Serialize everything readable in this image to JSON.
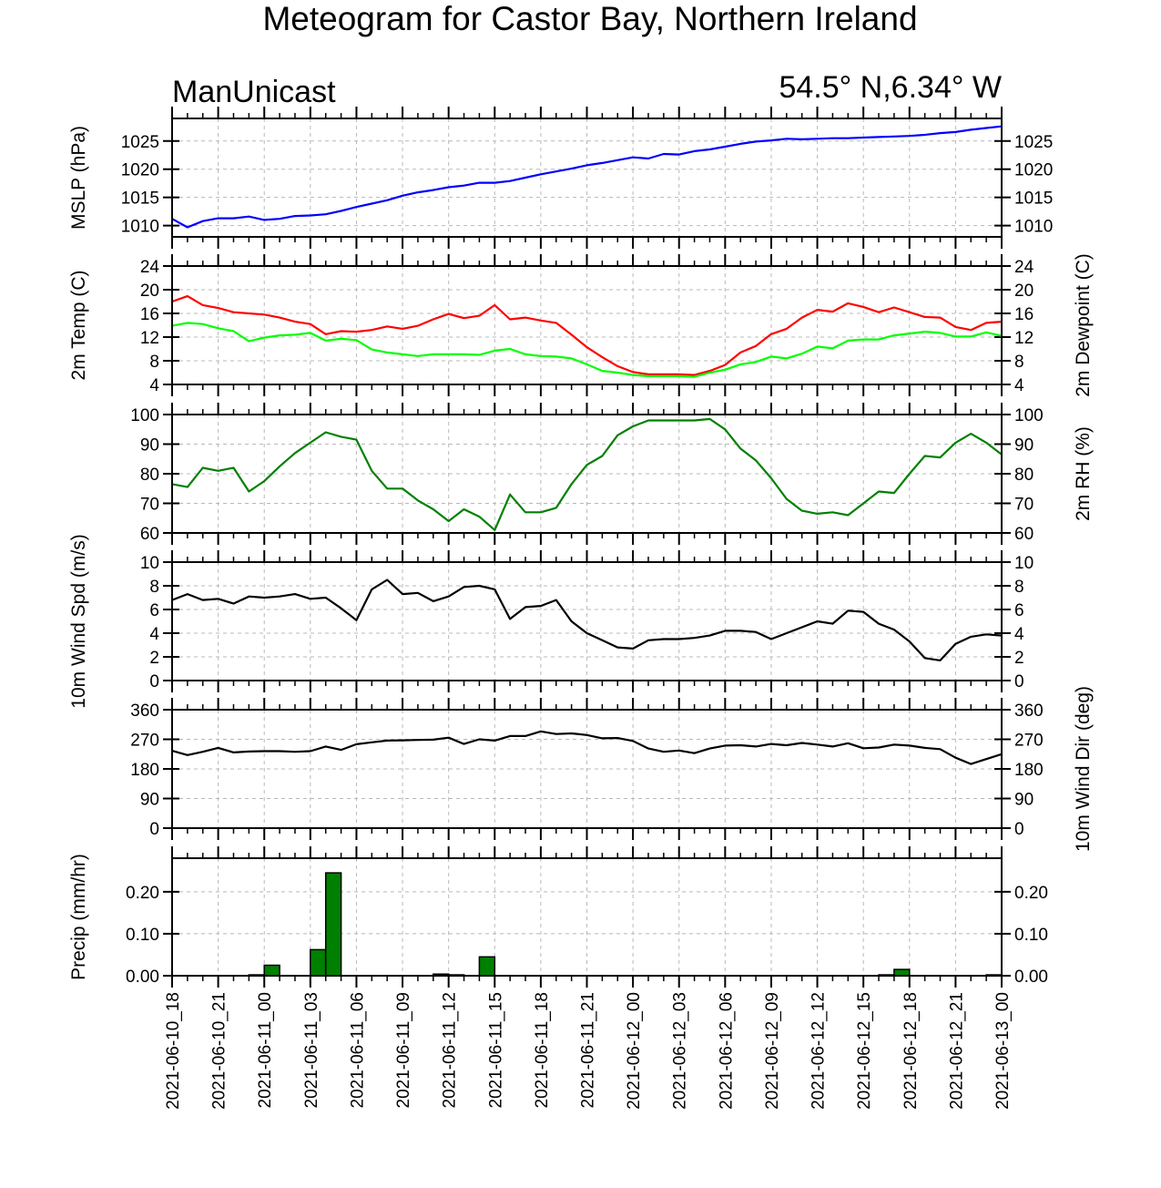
{
  "title": "Meteogram for Castor Bay, Northern Ireland",
  "model": "ManUnicast",
  "location": "54.5° N,6.34° W",
  "time_labels": [
    "2021-06-10_18",
    "2021-06-10_21",
    "2021-06-11_00",
    "2021-06-11_03",
    "2021-06-11_06",
    "2021-06-11_09",
    "2021-06-11_12",
    "2021-06-11_15",
    "2021-06-11_18",
    "2021-06-11_21",
    "2021-06-12_00",
    "2021-06-12_03",
    "2021-06-12_06",
    "2021-06-12_09",
    "2021-06-12_12",
    "2021-06-12_15",
    "2021-06-12_18",
    "2021-06-12_21",
    "2021-06-13_00"
  ],
  "chart_data": [
    {
      "type": "line",
      "ylabel": "MSLP (hPa)",
      "ylim": [
        1008,
        1029
      ],
      "yticks": [
        1010,
        1015,
        1020,
        1025
      ],
      "right_ticks": true,
      "grid": true,
      "x_hours": [
        0,
        1,
        2,
        3,
        4,
        5,
        6,
        7,
        8,
        9,
        10,
        11,
        12,
        13,
        14,
        15,
        16,
        17,
        18,
        19,
        20,
        21,
        22,
        23,
        24,
        25,
        26,
        27,
        28,
        29,
        30,
        31,
        32,
        33,
        34,
        35,
        36,
        37,
        38,
        39,
        40,
        41,
        42,
        43,
        44,
        45,
        46,
        47,
        48,
        49,
        50,
        51,
        52,
        53,
        54
      ],
      "series": [
        {
          "color": "#0000ff",
          "values": [
            1011.2,
            1009.7,
            1010.8,
            1011.3,
            1011.3,
            1011.6,
            1011.0,
            1011.2,
            1011.7,
            1011.8,
            1012.0,
            1012.6,
            1013.3,
            1013.9,
            1014.5,
            1015.3,
            1015.9,
            1016.3,
            1016.8,
            1017.1,
            1017.6,
            1017.6,
            1017.9,
            1018.5,
            1019.1,
            1019.6,
            1020.1,
            1020.7,
            1021.1,
            1021.6,
            1022.1,
            1021.9,
            1022.7,
            1022.6,
            1023.2,
            1023.5,
            1024.0,
            1024.5,
            1024.9,
            1025.1,
            1025.4,
            1025.3,
            1025.4,
            1025.5,
            1025.5,
            1025.6,
            1025.7,
            1025.8,
            1025.9,
            1026.1,
            1026.4,
            1026.6,
            1027.0,
            1027.3,
            1027.6
          ]
        }
      ]
    },
    {
      "type": "line",
      "ylabel": "2m Temp (C)",
      "ylabel_right": "2m Dewpoint (C)",
      "ylim": [
        4,
        24
      ],
      "yticks": [
        4,
        8,
        12,
        16,
        20,
        24
      ],
      "right_ticks": true,
      "grid": true,
      "x_hours": [
        0,
        1,
        2,
        3,
        4,
        5,
        6,
        7,
        8,
        9,
        10,
        11,
        12,
        13,
        14,
        15,
        16,
        17,
        18,
        19,
        20,
        21,
        22,
        23,
        24,
        25,
        26,
        27,
        28,
        29,
        30,
        31,
        32,
        33,
        34,
        35,
        36,
        37,
        38,
        39,
        40,
        41,
        42,
        43,
        44,
        45,
        46,
        47,
        48,
        49,
        50,
        51,
        52,
        53,
        54
      ],
      "series": [
        {
          "color": "#ff0000",
          "values": [
            18.0,
            18.9,
            17.4,
            16.9,
            16.2,
            16.0,
            15.8,
            15.3,
            14.6,
            14.2,
            12.5,
            13.0,
            12.9,
            13.2,
            13.8,
            13.4,
            13.9,
            15.0,
            15.9,
            15.2,
            15.6,
            17.4,
            15.0,
            15.3,
            14.8,
            14.4,
            12.4,
            10.3,
            8.6,
            7.1,
            6.1,
            5.7,
            5.7,
            5.7,
            5.6,
            6.3,
            7.3,
            9.4,
            10.5,
            12.5,
            13.4,
            15.3,
            16.6,
            16.3,
            17.7,
            17.1,
            16.2,
            17.0,
            16.2,
            15.4,
            15.3,
            13.7,
            13.2,
            14.4,
            14.6
          ]
        },
        {
          "color": "#00ff00",
          "values": [
            13.9,
            14.4,
            14.2,
            13.5,
            13.0,
            11.3,
            11.9,
            12.3,
            12.4,
            12.7,
            11.4,
            11.7,
            11.5,
            9.9,
            9.4,
            9.1,
            8.8,
            9.1,
            9.1,
            9.1,
            9.0,
            9.7,
            10.0,
            9.1,
            8.8,
            8.7,
            8.4,
            7.4,
            6.3,
            6.0,
            5.6,
            5.4,
            5.4,
            5.4,
            5.3,
            6.0,
            6.5,
            7.4,
            7.8,
            8.7,
            8.4,
            9.2,
            10.4,
            10.1,
            11.4,
            11.6,
            11.6,
            12.3,
            12.6,
            12.9,
            12.7,
            12.1,
            12.1,
            12.8,
            12.2
          ]
        }
      ]
    },
    {
      "type": "line",
      "ylabel_right": "2m RH (%)",
      "ylim": [
        60,
        100
      ],
      "yticks": [
        60,
        70,
        80,
        90,
        100
      ],
      "right_ticks": true,
      "grid": true,
      "x_hours": [
        0,
        1,
        2,
        3,
        4,
        5,
        6,
        7,
        8,
        9,
        10,
        11,
        12,
        13,
        14,
        15,
        16,
        17,
        18,
        19,
        20,
        21,
        22,
        23,
        24,
        25,
        26,
        27,
        28,
        29,
        30,
        31,
        32,
        33,
        34,
        35,
        36,
        37,
        38,
        39,
        40,
        41,
        42,
        43,
        44,
        45,
        46,
        47,
        48,
        49,
        50,
        51,
        52,
        53,
        54
      ],
      "series": [
        {
          "color": "#008000",
          "values": [
            76.5,
            75.5,
            82.0,
            81.0,
            82.0,
            74.0,
            77.5,
            82.5,
            87.0,
            90.5,
            94.0,
            92.5,
            91.5,
            81.0,
            75.0,
            75.0,
            71.0,
            68.0,
            64.0,
            68.0,
            65.5,
            61.0,
            73.0,
            67.0,
            67.0,
            68.5,
            76.5,
            83.0,
            86.0,
            93.0,
            96.0,
            98.0,
            98.0,
            98.0,
            98.0,
            98.5,
            95.0,
            88.5,
            84.5,
            78.5,
            71.5,
            67.5,
            66.5,
            67.0,
            66.0,
            70.0,
            74.0,
            73.5,
            80.0,
            86.0,
            85.5,
            90.5,
            93.5,
            90.5,
            86.5
          ]
        }
      ]
    },
    {
      "type": "line",
      "ylabel": "10m Wind Spd (m/s)",
      "ylim": [
        0,
        10
      ],
      "yticks": [
        0,
        2,
        4,
        6,
        8,
        10
      ],
      "right_ticks": true,
      "grid": true,
      "x_hours": [
        0,
        1,
        2,
        3,
        4,
        5,
        6,
        7,
        8,
        9,
        10,
        11,
        12,
        13,
        14,
        15,
        16,
        17,
        18,
        19,
        20,
        21,
        22,
        23,
        24,
        25,
        26,
        27,
        28,
        29,
        30,
        31,
        32,
        33,
        34,
        35,
        36,
        37,
        38,
        39,
        40,
        41,
        42,
        43,
        44,
        45,
        46,
        47,
        48,
        49,
        50,
        51,
        52,
        53,
        54
      ],
      "series": [
        {
          "color": "#000000",
          "values": [
            6.8,
            7.3,
            6.8,
            6.9,
            6.5,
            7.1,
            7.0,
            7.1,
            7.3,
            6.9,
            7.0,
            6.1,
            5.1,
            7.7,
            8.5,
            7.3,
            7.4,
            6.7,
            7.1,
            7.9,
            8.0,
            7.7,
            5.2,
            6.2,
            6.3,
            6.8,
            5.0,
            4.0,
            3.4,
            2.8,
            2.7,
            3.4,
            3.5,
            3.5,
            3.6,
            3.8,
            4.2,
            4.2,
            4.1,
            3.5,
            4.0,
            4.5,
            5.0,
            4.8,
            5.9,
            5.8,
            4.8,
            4.3,
            3.3,
            1.9,
            1.7,
            3.1,
            3.7,
            3.9,
            3.8
          ]
        }
      ]
    },
    {
      "type": "line",
      "ylabel_right": "10m Wind Dir (deg)",
      "ylim": [
        0,
        360
      ],
      "yticks": [
        0,
        90,
        180,
        270,
        360
      ],
      "right_ticks": true,
      "grid": true,
      "x_hours": [
        0,
        1,
        2,
        3,
        4,
        5,
        6,
        7,
        8,
        9,
        10,
        11,
        12,
        13,
        14,
        15,
        16,
        17,
        18,
        19,
        20,
        21,
        22,
        23,
        24,
        25,
        26,
        27,
        28,
        29,
        30,
        31,
        32,
        33,
        34,
        35,
        36,
        37,
        38,
        39,
        40,
        41,
        42,
        43,
        44,
        45,
        46,
        47,
        48,
        49,
        50,
        51,
        52,
        53,
        54
      ],
      "series": [
        {
          "color": "#000000",
          "values": [
            235,
            222,
            232,
            244,
            230,
            233,
            234,
            234,
            232,
            234,
            248,
            238,
            255,
            261,
            266,
            267,
            268,
            269,
            275,
            256,
            270,
            266,
            280,
            280,
            294,
            286,
            288,
            283,
            273,
            274,
            265,
            242,
            232,
            236,
            228,
            242,
            251,
            252,
            248,
            256,
            252,
            259,
            254,
            248,
            258,
            243,
            245,
            254,
            251,
            244,
            240,
            214,
            195,
            210,
            225
          ]
        }
      ]
    },
    {
      "type": "bar",
      "ylabel": "Precip (mm/hr)",
      "ylim": [
        0,
        0.28
      ],
      "yticks": [
        0.0,
        0.1,
        0.2
      ],
      "ytick_labels": [
        "0.00",
        "0.10",
        "0.20"
      ],
      "right_ticks": true,
      "grid": true,
      "bar_color": "#008000",
      "bars": [
        {
          "x": 6,
          "value": 0.002
        },
        {
          "x": 7,
          "value": 0.025
        },
        {
          "x": 10,
          "value": 0.062
        },
        {
          "x": 11,
          "value": 0.245
        },
        {
          "x": 18,
          "value": 0.004
        },
        {
          "x": 19,
          "value": 0.002
        },
        {
          "x": 21,
          "value": 0.045
        },
        {
          "x": 47,
          "value": 0.002
        },
        {
          "x": 48,
          "value": 0.015
        },
        {
          "x": 54,
          "value": 0.002
        }
      ]
    }
  ]
}
